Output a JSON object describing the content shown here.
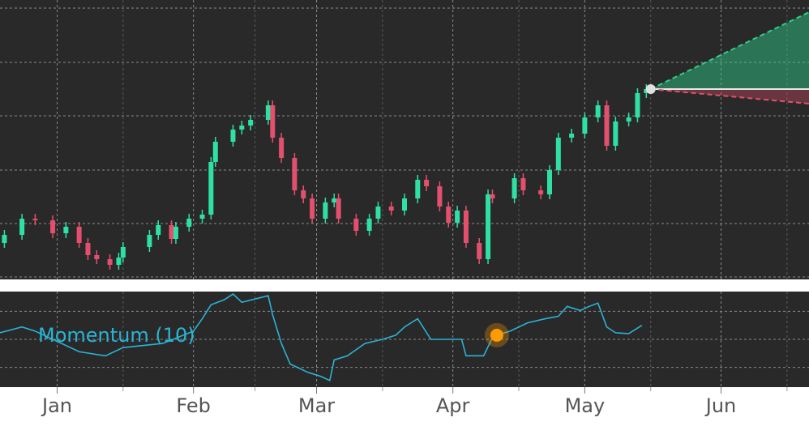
{
  "chart_data": [
    {
      "type": "candlestick",
      "x": [
        -12,
        -8,
        -5,
        -1,
        2,
        5,
        7,
        9,
        12,
        14,
        15,
        21,
        23,
        26,
        27,
        30,
        33,
        35,
        36,
        40,
        42,
        44,
        48,
        49,
        51,
        54,
        56,
        58,
        61,
        63,
        64,
        68,
        71,
        73,
        76,
        79,
        82,
        84,
        87,
        89,
        91,
        93,
        96,
        98,
        99,
        104,
        106,
        110,
        112,
        114,
        117,
        120,
        123,
        125,
        127,
        130,
        132,
        134
      ],
      "open": [
        100,
        110,
        130,
        128,
        112,
        120,
        100,
        85,
        80,
        73,
        82,
        95,
        110,
        122,
        105,
        120,
        130,
        135,
        200,
        225,
        240,
        245,
        252,
        270,
        230,
        205,
        165,
        155,
        130,
        150,
        155,
        130,
        115,
        130,
        145,
        140,
        155,
        178,
        170,
        145,
        125,
        140,
        100,
        80,
        160,
        155,
        180,
        165,
        160,
        190,
        230,
        235,
        255,
        270,
        220,
        250,
        255,
        285
      ],
      "close": [
        110,
        130,
        128,
        112,
        120,
        100,
        85,
        80,
        73,
        82,
        95,
        110,
        122,
        105,
        120,
        130,
        135,
        200,
        225,
        240,
        245,
        252,
        270,
        230,
        205,
        165,
        155,
        130,
        150,
        155,
        130,
        115,
        130,
        145,
        140,
        155,
        178,
        170,
        145,
        125,
        140,
        100,
        80,
        160,
        155,
        180,
        165,
        160,
        190,
        230,
        235,
        255,
        270,
        220,
        250,
        255,
        285,
        290
      ],
      "high": [
        116,
        136,
        136,
        134,
        126,
        126,
        106,
        91,
        86,
        88,
        101,
        116,
        128,
        128,
        126,
        136,
        141,
        206,
        231,
        246,
        251,
        258,
        276,
        276,
        236,
        211,
        171,
        161,
        156,
        161,
        161,
        136,
        136,
        151,
        151,
        161,
        184,
        184,
        176,
        151,
        146,
        146,
        106,
        166,
        166,
        186,
        186,
        171,
        196,
        236,
        241,
        261,
        276,
        276,
        256,
        261,
        291,
        296
      ],
      "low": [
        94,
        104,
        122,
        106,
        106,
        94,
        79,
        74,
        67,
        67,
        76,
        89,
        104,
        99,
        99,
        114,
        124,
        129,
        194,
        219,
        234,
        239,
        246,
        224,
        199,
        159,
        149,
        124,
        124,
        144,
        124,
        109,
        109,
        124,
        134,
        134,
        149,
        164,
        139,
        119,
        119,
        94,
        74,
        74,
        149,
        149,
        159,
        154,
        154,
        184,
        224,
        229,
        249,
        214,
        214,
        244,
        249,
        279
      ],
      "up_color": "#2fe0a4",
      "down_color": "#e3506e",
      "xlim": [
        -13,
        171
      ],
      "ylim": [
        55,
        400
      ],
      "xticks": [
        {
          "value": 0,
          "label": "Jan"
        },
        {
          "value": 31,
          "label": "Feb"
        },
        {
          "value": 59,
          "label": "Mar"
        },
        {
          "value": 90,
          "label": "Apr"
        },
        {
          "value": 120,
          "label": "May"
        },
        {
          "value": 151,
          "label": "Jun"
        }
      ],
      "minor_xticks": [
        15,
        45,
        74,
        105,
        135,
        166
      ],
      "yticks": [
        58,
        124,
        190,
        257,
        323,
        390
      ],
      "grid": true,
      "forecast": {
        "x": [
          135,
          171
        ],
        "upper": [
          290,
          385
        ],
        "lower": [
          290,
          272
        ],
        "upper_color": "#2fd08c",
        "lower_color": "#e3506e"
      }
    },
    {
      "type": "line",
      "label": "Momentum (10)",
      "color": "#2bb3d4",
      "x": [
        -13,
        -8,
        -5,
        5,
        11,
        15,
        24,
        31,
        33,
        35,
        38,
        40,
        42,
        48,
        49,
        51,
        53,
        57,
        60,
        62,
        63,
        66,
        70,
        74,
        77,
        79,
        82,
        85,
        88,
        92,
        93,
        97,
        99,
        100,
        103,
        107,
        111,
        114,
        116,
        119,
        121,
        123,
        125,
        127,
        130,
        133
      ],
      "values": [
        8,
        15,
        10,
        -15,
        -20,
        -10,
        -5,
        10,
        25,
        42,
        48,
        55,
        45,
        53,
        30,
        -5,
        -30,
        -40,
        -45,
        -50,
        -25,
        -20,
        -5,
        0,
        5,
        15,
        25,
        0,
        0,
        0,
        -20,
        -20,
        2,
        5,
        10,
        20,
        25,
        28,
        40,
        35,
        40,
        44,
        15,
        8,
        7,
        17
      ],
      "highlight": {
        "x": 100,
        "value": 5,
        "color": "#ff9a00"
      },
      "ylim": [
        -58,
        58
      ],
      "yticks": [
        -34,
        0,
        34
      ]
    }
  ]
}
